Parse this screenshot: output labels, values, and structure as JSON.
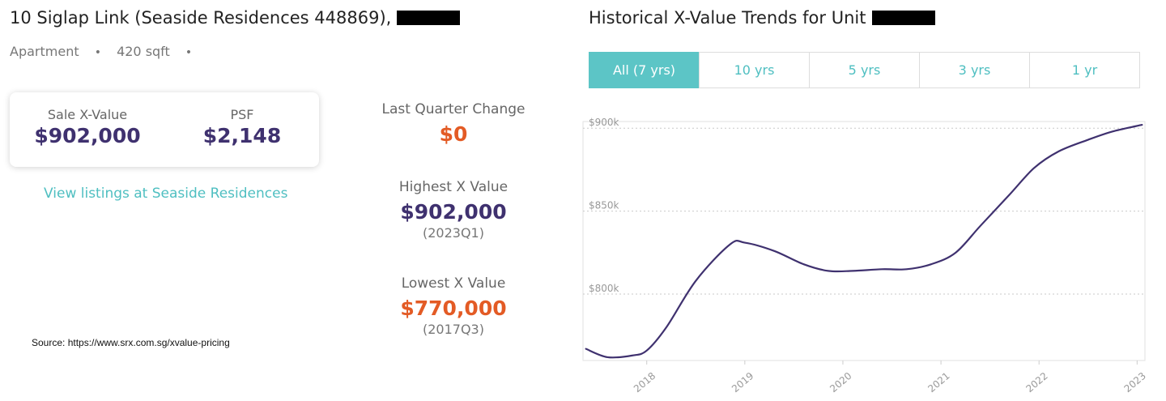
{
  "property": {
    "title": "10 Siglap Link (Seaside Residences 448869),",
    "type": "Apartment",
    "size": "420 sqft",
    "separator": "•"
  },
  "valuation": {
    "sale_label": "Sale X-Value",
    "sale_value": "$902,000",
    "psf_label": "PSF",
    "psf_value": "$2,148"
  },
  "listings_link": "View listings at Seaside Residences",
  "source_note": "Source: https://www.srx.com.sg/xvalue-pricing",
  "stats": {
    "change_label": "Last Quarter Change",
    "change_value": "$0",
    "highest_label": "Highest X Value",
    "highest_value": "$902,000",
    "highest_period": "(2023Q1)",
    "lowest_label": "Lowest X Value",
    "lowest_value": "$770,000",
    "lowest_period": "(2017Q3)"
  },
  "chart_header": {
    "title": "Historical X-Value Trends for Unit"
  },
  "range_tabs": [
    {
      "label": "All (7 yrs)",
      "active": true
    },
    {
      "label": "10 yrs",
      "active": false
    },
    {
      "label": "5 yrs",
      "active": false
    },
    {
      "label": "3 yrs",
      "active": false
    },
    {
      "label": "1 yr",
      "active": false
    }
  ],
  "colors": {
    "accent_teal": "#5cc5c6",
    "brand_purple": "#3f316f",
    "alert_orange": "#e35b25"
  },
  "chart_data": {
    "type": "line",
    "title": "",
    "xlabel": "",
    "ylabel": "",
    "x_tick_labels": [
      "2018",
      "2019",
      "2020",
      "2021",
      "2022",
      "2023"
    ],
    "y_tick_labels": [
      "$800k",
      "$850k",
      "$900k"
    ],
    "y_ticks": [
      800000,
      850000,
      900000
    ],
    "xlim": [
      2017.35,
      2023.08
    ],
    "ylim": [
      760000,
      904000
    ],
    "grid": true,
    "series": [
      {
        "name": "",
        "color": "#3f316f",
        "x": [
          2017.38,
          2017.6,
          2017.85,
          2018.0,
          2018.2,
          2018.5,
          2018.85,
          2019.0,
          2019.3,
          2019.6,
          2019.85,
          2020.1,
          2020.4,
          2020.65,
          2020.9,
          2021.15,
          2021.4,
          2021.7,
          2021.95,
          2022.2,
          2022.5,
          2022.75,
          2023.05
        ],
        "y": [
          767000,
          762000,
          763000,
          766000,
          780000,
          808000,
          830000,
          831000,
          826000,
          818000,
          814000,
          814000,
          815000,
          815000,
          818000,
          825000,
          841000,
          860000,
          876000,
          886000,
          893000,
          898000,
          902000
        ]
      }
    ]
  }
}
